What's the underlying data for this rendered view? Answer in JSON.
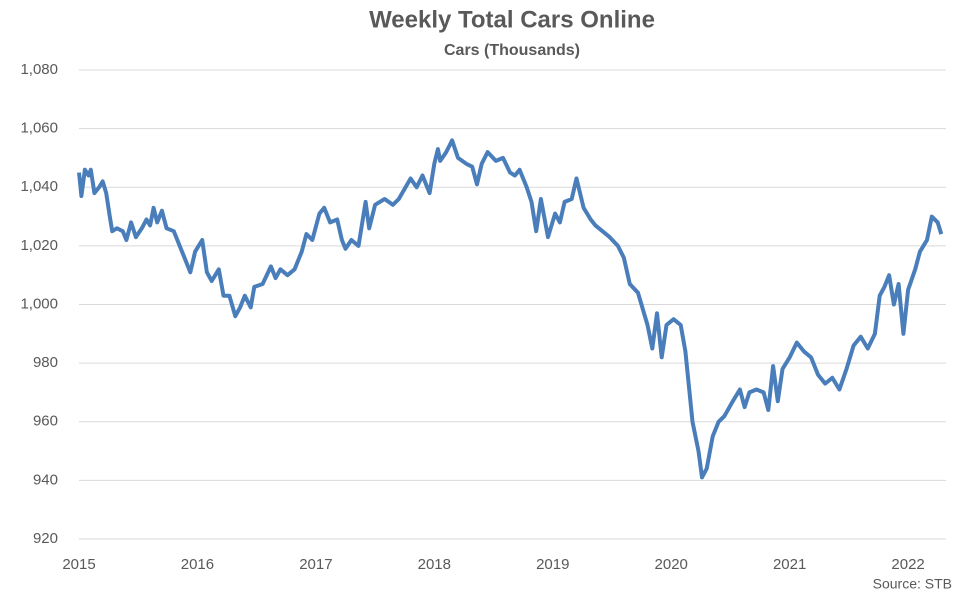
{
  "chart_data": {
    "type": "line",
    "title": "Weekly Total Cars Online",
    "subtitle": "Cars (Thousands)",
    "source": "Source:  STB",
    "x": [
      2015.0,
      2015.02,
      2015.05,
      2015.08,
      2015.1,
      2015.13,
      2015.17,
      2015.2,
      2015.23,
      2015.26,
      2015.28,
      2015.32,
      2015.37,
      2015.4,
      2015.44,
      2015.48,
      2015.53,
      2015.57,
      2015.6,
      2015.63,
      2015.66,
      2015.7,
      2015.74,
      2015.8,
      2015.85,
      2015.9,
      2015.94,
      2015.98,
      2016.04,
      2016.08,
      2016.12,
      2016.18,
      2016.22,
      2016.27,
      2016.32,
      2016.36,
      2016.4,
      2016.45,
      2016.48,
      2016.55,
      2016.62,
      2016.66,
      2016.7,
      2016.76,
      2016.82,
      2016.88,
      2016.92,
      2016.97,
      2017.03,
      2017.07,
      2017.12,
      2017.18,
      2017.22,
      2017.25,
      2017.3,
      2017.36,
      2017.42,
      2017.45,
      2017.5,
      2017.58,
      2017.65,
      2017.7,
      2017.8,
      2017.85,
      2017.9,
      2017.96,
      2018.0,
      2018.03,
      2018.05,
      2018.1,
      2018.15,
      2018.2,
      2018.27,
      2018.32,
      2018.36,
      2018.4,
      2018.45,
      2018.52,
      2018.58,
      2018.64,
      2018.68,
      2018.72,
      2018.78,
      2018.82,
      2018.86,
      2018.9,
      2018.96,
      2019.02,
      2019.06,
      2019.1,
      2019.16,
      2019.2,
      2019.26,
      2019.32,
      2019.36,
      2019.42,
      2019.48,
      2019.55,
      2019.6,
      2019.65,
      2019.72,
      2019.8,
      2019.84,
      2019.88,
      2019.92,
      2019.96,
      2020.02,
      2020.08,
      2020.12,
      2020.18,
      2020.23,
      2020.26,
      2020.3,
      2020.35,
      2020.4,
      2020.45,
      2020.52,
      2020.58,
      2020.62,
      2020.66,
      2020.72,
      2020.78,
      2020.82,
      2020.86,
      2020.9,
      2020.94,
      2021.0,
      2021.06,
      2021.12,
      2021.18,
      2021.24,
      2021.3,
      2021.36,
      2021.42,
      2021.48,
      2021.54,
      2021.6,
      2021.66,
      2021.72,
      2021.76,
      2021.8,
      2021.84,
      2021.88,
      2021.92,
      2021.96,
      2022.0,
      2022.06,
      2022.1,
      2022.16,
      2022.2,
      2022.25,
      2022.28
    ],
    "series": [
      {
        "name": "Weekly Total Cars Online",
        "color": "#4a7ebb",
        "values": [
          1045,
          1037,
          1046,
          1044,
          1046,
          1038,
          1040,
          1042,
          1038,
          1030,
          1025,
          1026,
          1025,
          1022,
          1028,
          1023,
          1026,
          1029,
          1027,
          1033,
          1028,
          1032,
          1026,
          1025,
          1020,
          1015,
          1011,
          1018,
          1022,
          1011,
          1008,
          1012,
          1003,
          1003,
          996,
          999,
          1003,
          999,
          1006,
          1007,
          1013,
          1009,
          1012,
          1010,
          1012,
          1018,
          1024,
          1022,
          1031,
          1033,
          1028,
          1029,
          1022,
          1019,
          1022,
          1020,
          1035,
          1026,
          1034,
          1036,
          1034,
          1036,
          1043,
          1040,
          1044,
          1038,
          1048,
          1053,
          1049,
          1052,
          1056,
          1050,
          1048,
          1047,
          1041,
          1048,
          1052,
          1049,
          1050,
          1045,
          1044,
          1046,
          1040,
          1035,
          1025,
          1036,
          1023,
          1031,
          1028,
          1035,
          1036,
          1043,
          1033,
          1029,
          1027,
          1025,
          1023,
          1020,
          1016,
          1007,
          1004,
          993,
          985,
          997,
          982,
          993,
          995,
          993,
          984,
          960,
          950,
          941,
          944,
          955,
          960,
          962,
          967,
          971,
          965,
          970,
          971,
          970,
          964,
          979,
          967,
          978,
          982,
          987,
          984,
          982,
          976,
          973,
          975,
          971,
          978,
          986,
          989,
          985,
          990,
          1003,
          1006,
          1010,
          1000,
          1007,
          990,
          1005,
          1012,
          1018,
          1022,
          1030,
          1028,
          1024
        ]
      }
    ],
    "xlim": [
      2015,
      2022.32
    ],
    "xticks": [
      2015,
      2016,
      2017,
      2018,
      2019,
      2020,
      2021,
      2022
    ],
    "ylim": [
      920,
      1080
    ],
    "yticks": [
      920,
      940,
      960,
      980,
      {
        "value": 1000,
        "label": "1,000"
      },
      {
        "value": 1020,
        "label": "1,020"
      },
      {
        "value": 1040,
        "label": "1,040"
      },
      {
        "value": 1060,
        "label": "1,060"
      },
      {
        "value": 1080,
        "label": "1,080"
      }
    ],
    "grid": true
  }
}
